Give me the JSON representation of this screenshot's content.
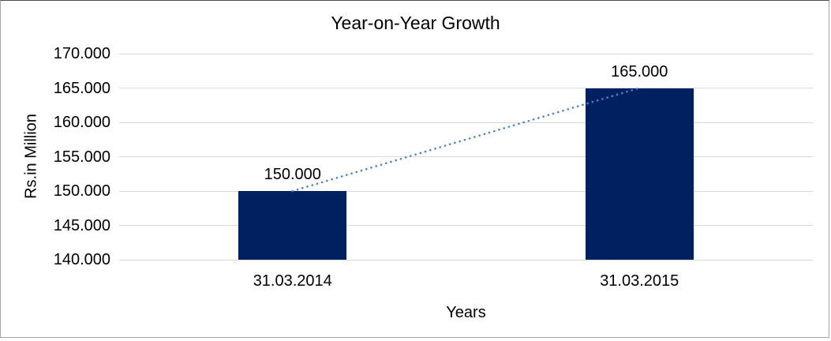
{
  "chart_data": {
    "type": "bar",
    "title": "Year-on-Year Growth",
    "xlabel": "Years",
    "ylabel": "Rs.in Million",
    "categories": [
      "31.03.2014",
      "31.03.2015"
    ],
    "values": [
      150,
      165
    ],
    "value_labels": [
      "150.000",
      "165.000"
    ],
    "yticks": [
      {
        "value": 140,
        "label": "140.000"
      },
      {
        "value": 145,
        "label": "145.000"
      },
      {
        "value": 150,
        "label": "150.000"
      },
      {
        "value": 155,
        "label": "155.000"
      },
      {
        "value": 160,
        "label": "160.000"
      },
      {
        "value": 165,
        "label": "165.000"
      },
      {
        "value": 170,
        "label": "170.000"
      }
    ],
    "ylim": [
      140,
      170
    ],
    "grid": true,
    "legend": false,
    "trendline": {
      "style": "dotted",
      "connects_bar_tops": [
        0,
        1
      ]
    },
    "colors": {
      "bar": "#002060",
      "gridline": "#d9d9d9",
      "text": "#000000",
      "trendline": "#4a86c8",
      "background": "#ffffff",
      "border": "#a6a6a6"
    }
  }
}
